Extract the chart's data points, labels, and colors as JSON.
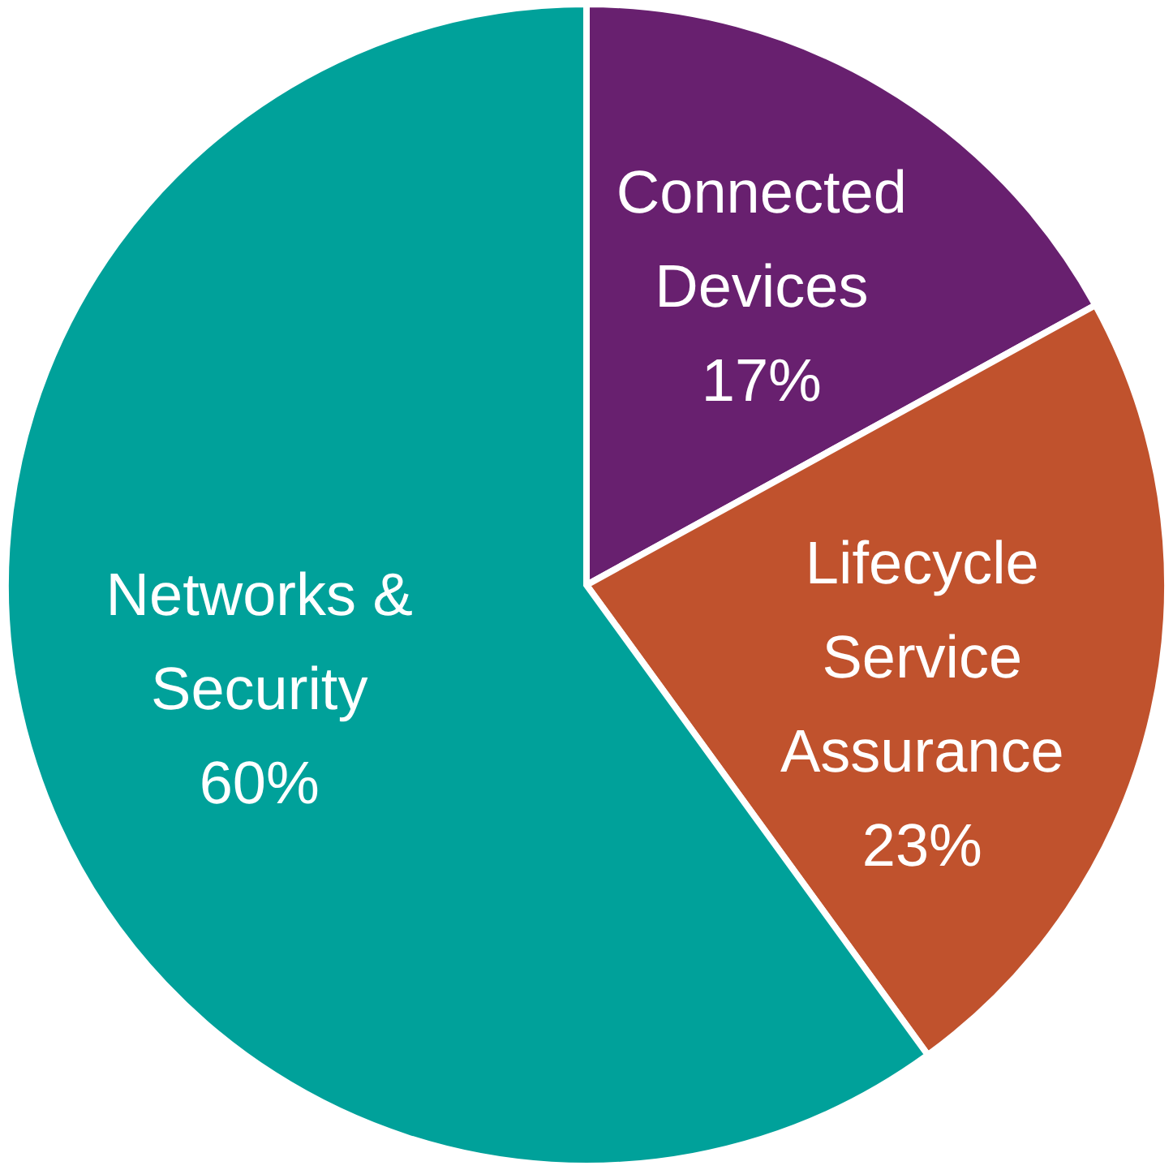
{
  "chart_data": {
    "type": "pie",
    "categories": [
      "Connected Devices",
      "Lifecycle Service Assurance",
      "Networks & Security"
    ],
    "values": [
      17,
      23,
      60
    ],
    "colors": [
      "#68206f",
      "#c0522d",
      "#00a19a"
    ],
    "value_labels": [
      "17%",
      "23%",
      "60%"
    ]
  }
}
